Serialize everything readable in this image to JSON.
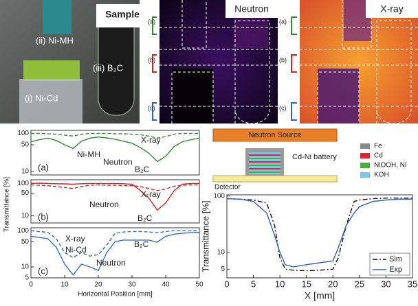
{
  "photo": {
    "title": "Sample",
    "labels": [
      "(ii) Ni-MH",
      "(iii) B₂C",
      "(i) Ni-Cd"
    ]
  },
  "neutron_image": {
    "title": "Neutron",
    "rows": [
      "(a)",
      "(b)",
      "(c)"
    ]
  },
  "xray_image": {
    "title": "X-ray",
    "rows": [
      "(a)",
      "(b)",
      "(c)"
    ]
  },
  "diagram": {
    "source": "Neutron Source",
    "battery": "Cd-Ni battery",
    "detector": "Detector",
    "legend": [
      {
        "name": "Fe",
        "color": "#8c8c8c"
      },
      {
        "name": "Cd",
        "color": "#e3242b"
      },
      {
        "name": "NiOOH, Ni",
        "color": "#4caf3a"
      },
      {
        "name": "KOH",
        "color": "#7fc4ea"
      }
    ]
  },
  "chart_data": [
    {
      "type": "line",
      "panel_label": "(a)",
      "log_y": true,
      "xlim": [
        0,
        50
      ],
      "ylim": [
        8,
        120
      ],
      "yticks": [
        100,
        50,
        10
      ],
      "x": [
        0,
        2.5,
        5,
        7.5,
        10,
        12.5,
        15,
        17.5,
        20,
        22.5,
        25,
        27.5,
        30,
        32.5,
        35,
        37.5,
        40,
        42.5,
        45,
        47.5,
        50
      ],
      "series": [
        {
          "name": "Neutron",
          "color": "#2e8b2e",
          "dash": "solid",
          "values": [
            60,
            68,
            75,
            65,
            50,
            40,
            62,
            75,
            80,
            76,
            70,
            62,
            55,
            42,
            30,
            18,
            25,
            45,
            60,
            68,
            75
          ]
        },
        {
          "name": "X-ray",
          "color": "#2e8b2e",
          "dash": "dashed",
          "values": [
            100,
            100,
            98,
            95,
            90,
            85,
            95,
            100,
            100,
            100,
            98,
            97,
            96,
            92,
            85,
            75,
            82,
            95,
            100,
            100,
            100
          ]
        }
      ],
      "annotations": [
        "Ni-MH",
        "X-ray",
        "Neutron",
        "B₂C"
      ]
    },
    {
      "type": "line",
      "panel_label": "(b)",
      "log_y": true,
      "xlim": [
        0,
        50
      ],
      "ylim": [
        6,
        130
      ],
      "yticks": [
        100,
        50,
        10
      ],
      "x": [
        0,
        2.5,
        5,
        7.5,
        10,
        12.5,
        15,
        17.5,
        20,
        22.5,
        25,
        27.5,
        30,
        32.5,
        35,
        37.5,
        40,
        42.5,
        45,
        47.5,
        50
      ],
      "series": [
        {
          "name": "Neutron",
          "color": "#e02020",
          "dash": "solid",
          "values": [
            100,
            102,
            100,
            98,
            97,
            95,
            98,
            100,
            100,
            99,
            100,
            98,
            95,
            60,
            35,
            15,
            25,
            60,
            95,
            100,
            100
          ]
        },
        {
          "name": "X-ray",
          "color": "#e02020",
          "dash": "dashed",
          "values": [
            90,
            88,
            85,
            80,
            75,
            70,
            80,
            88,
            90,
            88,
            88,
            86,
            85,
            80,
            70,
            60,
            68,
            82,
            88,
            90,
            90
          ]
        }
      ],
      "annotations": [
        "Neutron",
        "X-ray",
        "B₂C"
      ]
    },
    {
      "type": "line",
      "panel_label": "(c)",
      "log_y": true,
      "xlim": [
        0,
        50
      ],
      "ylim": [
        5,
        120
      ],
      "yticks": [
        100,
        50,
        10,
        5
      ],
      "xticks": [
        0,
        10,
        20,
        30,
        40,
        50
      ],
      "xlabel": "Horizontal Position [mm]",
      "ylabel": "Transmittance [%]",
      "x": [
        0,
        2.5,
        5,
        7.5,
        10,
        12.5,
        15,
        17.5,
        20,
        22.5,
        25,
        27.5,
        30,
        32.5,
        35,
        37.5,
        40,
        42.5,
        45,
        47.5,
        50
      ],
      "series": [
        {
          "name": "Neutron",
          "color": "#2f6fd6",
          "dash": "solid",
          "values": [
            70,
            65,
            60,
            35,
            12,
            6,
            12,
            10,
            8,
            25,
            50,
            55,
            55,
            55,
            55,
            48,
            70,
            80,
            85,
            88,
            90
          ]
        },
        {
          "name": "X-ray",
          "color": "#2f6fd6",
          "dash": "dashed",
          "values": [
            100,
            95,
            90,
            60,
            25,
            18,
            25,
            20,
            22,
            40,
            85,
            92,
            95,
            95,
            92,
            88,
            95,
            100,
            100,
            100,
            100
          ]
        }
      ],
      "annotations": [
        "X-ray",
        "Ni-Cd",
        "Neutron",
        "B₂C"
      ]
    },
    {
      "type": "line",
      "log_y": true,
      "xlim": [
        0,
        35
      ],
      "ylim": [
        3.5,
        105
      ],
      "xticks": [
        0,
        5,
        10,
        15,
        20,
        25,
        30,
        35
      ],
      "yticks": [
        100,
        10,
        5
      ],
      "xlabel": "X [mm]",
      "ylabel": "Transmittance [%]",
      "legend": "lower right",
      "x": [
        0,
        2.5,
        5,
        7.5,
        9,
        10,
        11,
        12.5,
        15,
        17.5,
        20,
        21,
        22.5,
        24,
        25,
        27.5,
        30,
        32.5,
        35
      ],
      "series": [
        {
          "name": "Sim",
          "color": "#111111",
          "dash": "dashdot",
          "values": [
            90,
            88,
            85,
            75,
            30,
            8,
            5,
            4.8,
            4.7,
            4.8,
            5,
            8,
            30,
            80,
            85,
            90,
            92,
            92,
            92
          ]
        },
        {
          "name": "Exp",
          "color": "#2f5fc4",
          "dash": "solid",
          "values": [
            90,
            88,
            80,
            50,
            20,
            10,
            6,
            5.5,
            6,
            6.5,
            7,
            12,
            30,
            50,
            65,
            80,
            85,
            88,
            88
          ]
        }
      ]
    }
  ]
}
